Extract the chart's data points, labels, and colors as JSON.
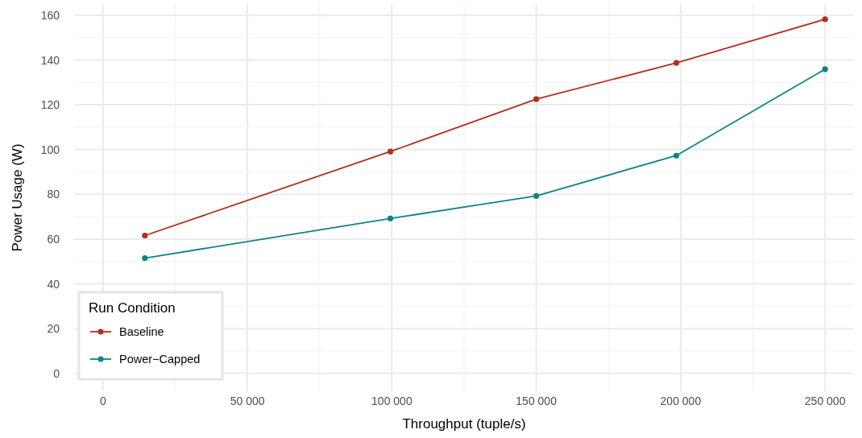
{
  "chart_data": {
    "type": "line",
    "xlabel": "Throughput (tuple/s)",
    "ylabel": "Power Usage (W)",
    "legend_title": "Run Condition",
    "legend": "bottom left",
    "grid": true,
    "marker": "circle",
    "line_style": "solid",
    "xlim": [
      -10000,
      260000
    ],
    "xticks": [
      {
        "value": 0,
        "label": "0"
      },
      {
        "value": 50000,
        "label": "50 000"
      },
      {
        "value": 100000,
        "label": "100 000"
      },
      {
        "value": 150000,
        "label": "150 000"
      },
      {
        "value": 200000,
        "label": "200 000"
      },
      {
        "value": 250000,
        "label": "250 000"
      }
    ],
    "ylim": [
      -8,
      165
    ],
    "yticks": [
      0,
      20,
      40,
      60,
      80,
      100,
      120,
      140,
      160
    ],
    "series": [
      {
        "name": "Baseline",
        "color": "#b0311f",
        "x": [
          14500,
          99500,
          150000,
          198500,
          250000
        ],
        "values": [
          61.6,
          99.1,
          122.5,
          138.7,
          158.2
        ]
      },
      {
        "name": "Power−Capped",
        "color": "#0e8385",
        "x": [
          14500,
          99500,
          150000,
          198500,
          250000
        ],
        "values": [
          51.5,
          69.2,
          79.3,
          97.3,
          135.9
        ]
      }
    ]
  }
}
